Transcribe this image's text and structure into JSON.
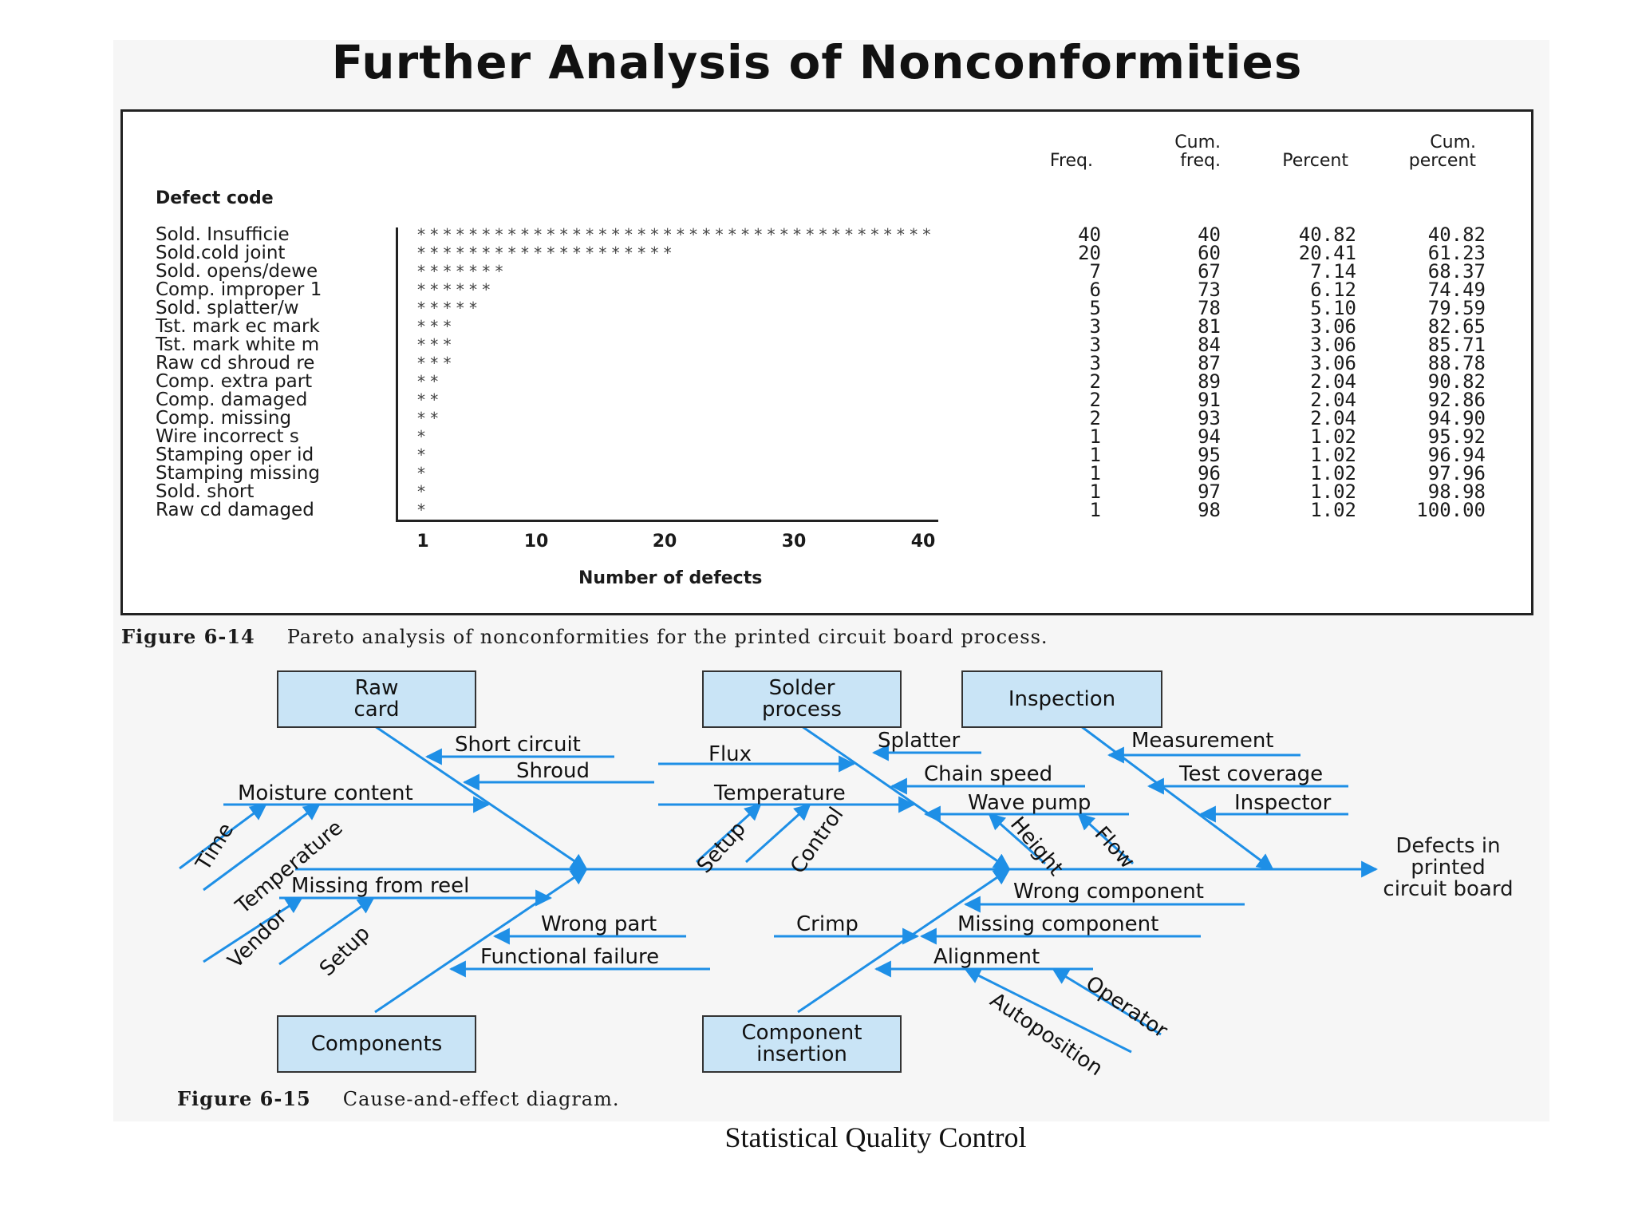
{
  "title": "Further Analysis of Nonconformities",
  "pareto": {
    "defect_code_header": "Defect code",
    "headers": {
      "freq": "Freq.",
      "cum_freq_1": "Cum.",
      "cum_freq_2": "freq.",
      "percent": "Percent",
      "cum_percent_1": "Cum.",
      "cum_percent_2": "percent"
    },
    "axis_label": "Number of defects",
    "axis_ticks": [
      "1",
      "10",
      "20",
      "30",
      "40"
    ],
    "rows": [
      {
        "code": "Sold. Insufficie",
        "freq": "40",
        "cum": "40",
        "pct": "40.82",
        "cumpct": "40.82"
      },
      {
        "code": "Sold.cold joint",
        "freq": "20",
        "cum": "60",
        "pct": "20.41",
        "cumpct": "61.23"
      },
      {
        "code": "Sold. opens/dewe",
        "freq": "7",
        "cum": "67",
        "pct": "7.14",
        "cumpct": "68.37"
      },
      {
        "code": "Comp. improper 1",
        "freq": "6",
        "cum": "73",
        "pct": "6.12",
        "cumpct": "74.49"
      },
      {
        "code": "Sold. splatter/w",
        "freq": "5",
        "cum": "78",
        "pct": "5.10",
        "cumpct": "79.59"
      },
      {
        "code": "Tst. mark ec mark",
        "freq": "3",
        "cum": "81",
        "pct": "3.06",
        "cumpct": "82.65"
      },
      {
        "code": "Tst. mark white m",
        "freq": "3",
        "cum": "84",
        "pct": "3.06",
        "cumpct": "85.71"
      },
      {
        "code": "Raw cd shroud re",
        "freq": "3",
        "cum": "87",
        "pct": "3.06",
        "cumpct": "88.78"
      },
      {
        "code": "Comp. extra part",
        "freq": "2",
        "cum": "89",
        "pct": "2.04",
        "cumpct": "90.82"
      },
      {
        "code": "Comp. damaged",
        "freq": "2",
        "cum": "91",
        "pct": "2.04",
        "cumpct": "92.86"
      },
      {
        "code": "Comp. missing",
        "freq": "2",
        "cum": "93",
        "pct": "2.04",
        "cumpct": "94.90"
      },
      {
        "code": "Wire incorrect s",
        "freq": "1",
        "cum": "94",
        "pct": "1.02",
        "cumpct": "95.92"
      },
      {
        "code": "Stamping oper id",
        "freq": "1",
        "cum": "95",
        "pct": "1.02",
        "cumpct": "96.94"
      },
      {
        "code": "Stamping missing",
        "freq": "1",
        "cum": "96",
        "pct": "1.02",
        "cumpct": "97.96"
      },
      {
        "code": "Sold. short",
        "freq": "1",
        "cum": "97",
        "pct": "1.02",
        "cumpct": "98.98"
      },
      {
        "code": "Raw cd damaged",
        "freq": "1",
        "cum": "98",
        "pct": "1.02",
        "cumpct": "100.00"
      }
    ],
    "caption_label": "Figure 6-14",
    "caption_text": "Pareto analysis of nonconformities for the printed circuit board process."
  },
  "fishbone": {
    "effect": [
      "Defects in",
      "printed",
      "circuit board"
    ],
    "categories": {
      "raw_card": "Raw\ncard",
      "solder_process": "Solder\nprocess",
      "inspection": "Inspection",
      "components": "Components",
      "component_insertion": "Component\ninsertion"
    },
    "causes": {
      "short_circuit": "Short circuit",
      "shroud": "Shroud",
      "moisture_content": "Moisture content",
      "time": "Time",
      "temperature_raw": "Temperature",
      "flux": "Flux",
      "splatter": "Splatter",
      "chain_speed": "Chain speed",
      "temperature_solder": "Temperature",
      "wave_pump": "Wave pump",
      "setup_solder": "Setup",
      "control": "Control",
      "height": "Height",
      "flow": "Flow",
      "measurement": "Measurement",
      "test_coverage": "Test coverage",
      "inspector": "Inspector",
      "missing_from_reel": "Missing from reel",
      "vendor": "Vendor",
      "setup_comp": "Setup",
      "wrong_part": "Wrong part",
      "functional_failure": "Functional failure",
      "wrong_component": "Wrong component",
      "crimp": "Crimp",
      "missing_component": "Missing component",
      "alignment": "Alignment",
      "operator": "Operator",
      "autoposition": "Autoposition"
    },
    "line_color": "#1e8fe6",
    "caption_label": "Figure 6-15",
    "caption_text": "Cause-and-effect diagram."
  },
  "footer": "Statistical Quality Control"
}
